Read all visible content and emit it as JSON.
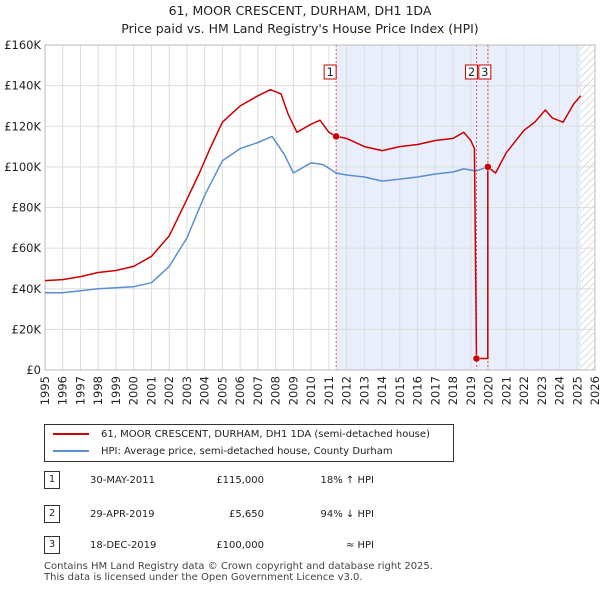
{
  "chart_data": {
    "type": "line",
    "title": "61, MOOR CRESCENT, DURHAM, DH1 1DA",
    "subtitle": "Price paid vs. HM Land Registry's House Price Index (HPI)",
    "xlim": [
      1995,
      2026
    ],
    "ylim": [
      0,
      160000
    ],
    "x_ticks": [
      "1995",
      "1996",
      "1997",
      "1998",
      "1999",
      "2000",
      "2001",
      "2002",
      "2003",
      "2004",
      "2005",
      "2006",
      "2007",
      "2008",
      "2009",
      "2010",
      "2011",
      "2012",
      "2013",
      "2014",
      "2015",
      "2016",
      "2017",
      "2018",
      "2019",
      "2020",
      "2021",
      "2022",
      "2023",
      "2024",
      "2025",
      "2026"
    ],
    "y_ticks": [
      {
        "value": 0,
        "label": "£0"
      },
      {
        "value": 20000,
        "label": "£20K"
      },
      {
        "value": 40000,
        "label": "£40K"
      },
      {
        "value": 60000,
        "label": "£60K"
      },
      {
        "value": 80000,
        "label": "£80K"
      },
      {
        "value": 100000,
        "label": "£100K"
      },
      {
        "value": 120000,
        "label": "£120K"
      },
      {
        "value": 140000,
        "label": "£140K"
      },
      {
        "value": 160000,
        "label": "£160K"
      }
    ],
    "grid": true,
    "shaded_period": [
      2011.41,
      2025.2
    ],
    "hatched_after": 2025.2,
    "series": [
      {
        "name": "61, MOOR CRESCENT, DURHAM, DH1 1DA (semi-detached house)",
        "color": "#cc0000",
        "points": [
          [
            1995,
            44000
          ],
          [
            1996,
            44500
          ],
          [
            1997,
            46000
          ],
          [
            1998,
            48000
          ],
          [
            1999,
            49000
          ],
          [
            2000,
            51000
          ],
          [
            2001,
            56000
          ],
          [
            2002,
            66000
          ],
          [
            2003,
            84000
          ],
          [
            2003.7,
            97000
          ],
          [
            2004.3,
            109000
          ],
          [
            2005,
            122000
          ],
          [
            2006,
            130000
          ],
          [
            2007,
            135000
          ],
          [
            2007.7,
            138000
          ],
          [
            2008.3,
            136000
          ],
          [
            2008.7,
            126000
          ],
          [
            2009.2,
            117000
          ],
          [
            2010,
            121000
          ],
          [
            2010.5,
            123000
          ],
          [
            2011,
            117000
          ],
          [
            2011.41,
            115000
          ],
          [
            2012,
            114000
          ],
          [
            2013,
            110000
          ],
          [
            2014,
            108000
          ],
          [
            2015,
            110000
          ],
          [
            2016,
            111000
          ],
          [
            2017,
            113000
          ],
          [
            2018,
            114000
          ],
          [
            2018.6,
            117000
          ],
          [
            2019.0,
            113000
          ],
          [
            2019.2,
            109000
          ],
          [
            2019.32,
            5650
          ],
          [
            2019.96,
            5650
          ],
          [
            2019.96,
            100000
          ],
          [
            2020.4,
            97000
          ],
          [
            2021,
            107000
          ],
          [
            2022,
            118000
          ],
          [
            2022.6,
            122000
          ],
          [
            2023.2,
            128000
          ],
          [
            2023.6,
            124000
          ],
          [
            2024.2,
            122000
          ],
          [
            2024.8,
            131000
          ],
          [
            2025.2,
            135000
          ]
        ]
      },
      {
        "name": "HPI: Average price, semi-detached house, County Durham",
        "color": "#5b8fd1",
        "points": [
          [
            1995,
            38000
          ],
          [
            1996,
            38000
          ],
          [
            1997,
            39000
          ],
          [
            1998,
            40000
          ],
          [
            1999,
            40500
          ],
          [
            2000,
            41000
          ],
          [
            2001,
            43000
          ],
          [
            2002,
            51000
          ],
          [
            2003,
            65000
          ],
          [
            2004,
            86000
          ],
          [
            2005,
            103000
          ],
          [
            2006,
            109000
          ],
          [
            2007,
            112000
          ],
          [
            2007.8,
            115000
          ],
          [
            2008.5,
            106000
          ],
          [
            2009,
            97000
          ],
          [
            2010,
            102000
          ],
          [
            2010.7,
            101000
          ],
          [
            2011.41,
            97000
          ],
          [
            2012,
            96000
          ],
          [
            2013,
            95000
          ],
          [
            2014,
            93000
          ],
          [
            2015,
            94000
          ],
          [
            2016,
            95000
          ],
          [
            2017,
            96500
          ],
          [
            2018,
            97500
          ],
          [
            2018.6,
            99000
          ],
          [
            2019.3,
            98000
          ],
          [
            2019.96,
            100000
          ]
        ]
      }
    ],
    "sale_markers": [
      {
        "label": "1",
        "x": 2011.41,
        "y": 115000
      },
      {
        "label": "2",
        "x": 2019.32,
        "y": 5650
      },
      {
        "label": "3",
        "x": 2019.96,
        "y": 100000
      }
    ]
  },
  "legend": {
    "property_label": "61, MOOR CRESCENT, DURHAM, DH1 1DA (semi-detached house)",
    "hpi_label": "HPI: Average price, semi-detached house, County Durham",
    "property_color": "#cc0000",
    "hpi_color": "#5b8fd1"
  },
  "sales": [
    {
      "num": "1",
      "date": "30-MAY-2011",
      "price": "£115,000",
      "hpi": "18% ↑ HPI"
    },
    {
      "num": "2",
      "date": "29-APR-2019",
      "price": "£5,650",
      "hpi": "94% ↓ HPI"
    },
    {
      "num": "3",
      "date": "18-DEC-2019",
      "price": "£100,000",
      "hpi": "≈ HPI"
    }
  ],
  "footer": {
    "line1": "Contains HM Land Registry data © Crown copyright and database right 2025.",
    "line2": "This data is licensed under the Open Government Licence v3.0."
  }
}
